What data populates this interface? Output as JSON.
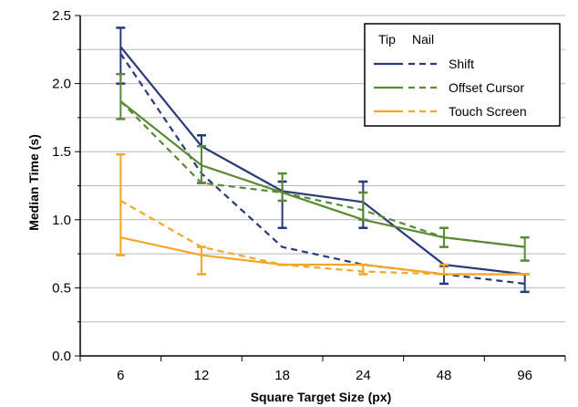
{
  "chart_data": {
    "type": "line",
    "title": "",
    "xlabel": "Square Target Size (px)",
    "ylabel": "Median Time (s)",
    "categories": [
      "6",
      "12",
      "18",
      "24",
      "48",
      "96"
    ],
    "ylim": [
      0,
      2.5
    ],
    "y_ticks": [
      "0.0",
      "0.5",
      "1.0",
      "1.5",
      "2.0",
      "2.5"
    ],
    "grid": true,
    "legend_position": "top-right",
    "legend_headers": [
      "Tip",
      "Nail"
    ],
    "legend_entries": [
      "Shift",
      "Offset Cursor",
      "Touch Screen"
    ],
    "series": [
      {
        "name": "Shift",
        "style": "tip",
        "color": "#283a7c",
        "values": [
          2.27,
          1.54,
          1.21,
          1.13,
          0.67,
          0.6
        ],
        "error_low": [
          2.0,
          1.27,
          0.94,
          0.94,
          0.53,
          0.47
        ],
        "error_high": [
          2.41,
          1.62,
          1.28,
          1.28,
          0.66,
          0.6
        ]
      },
      {
        "name": "Shift",
        "style": "nail",
        "color": "#283a7c",
        "values": [
          2.22,
          1.34,
          0.8,
          0.67,
          0.6,
          0.53
        ],
        "error_low": null,
        "error_high": null
      },
      {
        "name": "Offset Cursor",
        "style": "tip",
        "color": "#5a8a34",
        "values": [
          1.87,
          1.4,
          1.2,
          1.0,
          0.87,
          0.8
        ],
        "error_low": [
          1.74,
          1.27,
          1.14,
          1.0,
          0.8,
          0.7
        ],
        "error_high": [
          2.07,
          1.54,
          1.34,
          1.2,
          0.94,
          0.87
        ]
      },
      {
        "name": "Offset Cursor",
        "style": "nail",
        "color": "#5a8a34",
        "values": [
          1.87,
          1.27,
          1.2,
          1.07,
          0.87,
          0.8
        ],
        "error_low": null,
        "error_high": null
      },
      {
        "name": "Touch Screen",
        "style": "tip",
        "color": "#f5a623",
        "values": [
          0.87,
          0.74,
          0.67,
          0.67,
          0.6,
          0.6
        ],
        "error_low": [
          0.74,
          0.6,
          0.67,
          0.6,
          0.6,
          0.6
        ],
        "error_high": [
          1.48,
          0.8,
          0.67,
          0.67,
          0.67,
          0.6
        ]
      },
      {
        "name": "Touch Screen",
        "style": "nail",
        "color": "#f5a623",
        "values": [
          1.14,
          0.8,
          0.67,
          0.62,
          0.6,
          0.6
        ],
        "error_low": null,
        "error_high": null
      }
    ]
  }
}
